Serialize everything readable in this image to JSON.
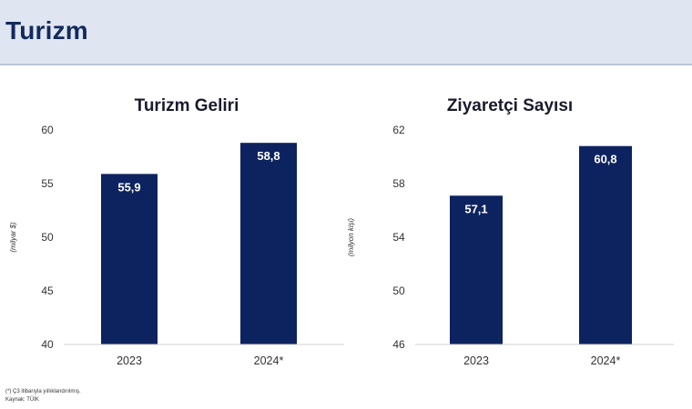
{
  "header": {
    "title": "Turizm"
  },
  "footnotes": {
    "note": "(*) Ç3 itibarıyla yıllıklandırılmış.",
    "source": "Kaynak: TÜİK"
  },
  "chart_data": [
    {
      "type": "bar",
      "title": "Turizm Geliri",
      "categories": [
        "2023",
        "2024*"
      ],
      "values": [
        55.9,
        58.8
      ],
      "value_labels": [
        "55,9",
        "58,8"
      ],
      "ylabel": "(milyar $)",
      "ylim": [
        40,
        60
      ],
      "yticks": [
        40,
        45,
        50,
        55,
        60
      ],
      "ytick_labels": [
        "40",
        "45",
        "50",
        "55",
        "60"
      ],
      "grid": false,
      "bar_color": "#0d2360"
    },
    {
      "type": "bar",
      "title": "Ziyaretçi Sayısı",
      "categories": [
        "2023",
        "2024*"
      ],
      "values": [
        57.1,
        60.8
      ],
      "value_labels": [
        "57,1",
        "60,8"
      ],
      "ylabel": "(milyon kişi)",
      "ylim": [
        46,
        62
      ],
      "yticks": [
        46,
        50,
        54,
        58,
        62
      ],
      "ytick_labels": [
        "46",
        "50",
        "54",
        "58",
        "62"
      ],
      "grid": false,
      "bar_color": "#0d2360"
    }
  ]
}
